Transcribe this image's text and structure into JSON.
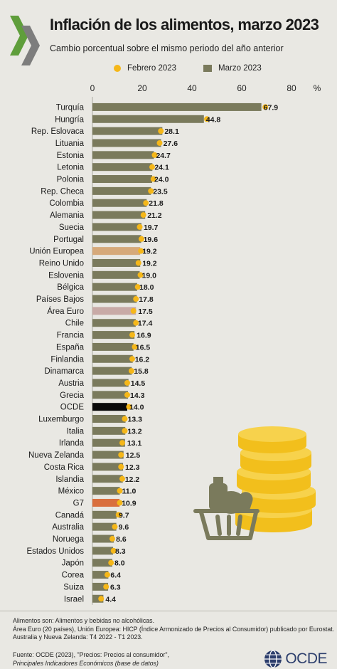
{
  "title": "Inflación de los alimentos, marzo 2023",
  "subtitle": "Cambio porcentual sobre el mismo periodo del año anterior",
  "colors": {
    "bar": "#7a7a5c",
    "dot": "#f5b719",
    "eu": "#d6a97a",
    "euro_area": "#c8aaa6",
    "oecd": "#0a0a0a",
    "g7": "#d96f3e",
    "background": "#e9e8e3"
  },
  "chart_data": {
    "type": "bar",
    "orientation": "horizontal",
    "unit_label": "%",
    "xlim": [
      0,
      85
    ],
    "x_ticks": [
      "0",
      "20",
      "40",
      "60",
      "80"
    ],
    "legend": {
      "placement": "top",
      "dot_label": "Febrero 2023",
      "bar_label": "Marzo 2023"
    },
    "categories": [
      "Turquía",
      "Hungría",
      "Rep. Eslovaca",
      "Lituania",
      "Estonia",
      "Letonia",
      "Polonia",
      "Rep. Checa",
      "Colombia",
      "Alemania",
      "Suecia",
      "Portugal",
      "Unión Europea",
      "Reino Unido",
      "Eslovenia",
      "Bélgica",
      "Países Bajos",
      "Área Euro",
      "Chile",
      "Francia",
      "España",
      "Finlandia",
      "Dinamarca",
      "Austria",
      "Grecia",
      "OCDE",
      "Luxemburgo",
      "Italia",
      "Irlanda",
      "Nueva Zelanda",
      "Costa Rica",
      "Islandia",
      "México",
      "G7",
      "Canadá",
      "Australia",
      "Noruega",
      "Estados Unidos",
      "Japón",
      "Corea",
      "Suiza",
      "Israel"
    ],
    "series": [
      {
        "name": "Marzo 2023",
        "values": [
          67.9,
          44.8,
          28.1,
          27.6,
          24.7,
          24.1,
          24.0,
          23.5,
          21.8,
          21.2,
          19.7,
          19.6,
          19.2,
          19.2,
          19.0,
          18.0,
          17.8,
          17.5,
          17.4,
          16.9,
          16.5,
          16.2,
          15.8,
          14.5,
          14.3,
          14.0,
          13.3,
          13.2,
          13.1,
          12.5,
          12.3,
          12.2,
          11.0,
          10.9,
          9.7,
          9.6,
          8.6,
          8.3,
          8.0,
          6.4,
          6.3,
          4.4
        ],
        "labels": [
          "67.9",
          "44.8",
          "28.1",
          "27.6",
          "24.7",
          "24.1",
          "24.0",
          "23.5",
          "21.8",
          "21.2",
          "19.7",
          "19.6",
          "19.2",
          "19.2",
          "19.0",
          "18.0",
          "17.8",
          "17.5",
          "17.4",
          "16.9",
          "16.5",
          "16.2",
          "15.8",
          "14.5",
          "14.3",
          "14.0",
          "13.3",
          "13.2",
          "13.1",
          "12.5",
          "12.3",
          "12.2",
          "11.0",
          "10.9",
          "9.7",
          "9.6",
          "8.6",
          "8.3",
          "8.0",
          "6.4",
          "6.3",
          "4.4"
        ]
      },
      {
        "name": "Febrero 2023",
        "values": [
          69.5,
          46.0,
          27.5,
          27.0,
          25.0,
          24.0,
          24.5,
          23.5,
          21.5,
          20.5,
          19.0,
          19.7,
          19.5,
          18.5,
          19.3,
          18.2,
          17.5,
          16.5,
          17.5,
          16.0,
          17.0,
          16.0,
          15.7,
          14.0,
          14.0,
          14.7,
          13.0,
          13.0,
          12.0,
          11.5,
          11.5,
          12.0,
          11.0,
          11.0,
          10.5,
          9.0,
          8.0,
          8.5,
          7.5,
          6.0,
          5.5,
          3.5
        ]
      }
    ],
    "highlights": {
      "Unión Europea": "eu",
      "Área Euro": "euro_area",
      "OCDE": "oecd",
      "G7": "g7"
    }
  },
  "footer": {
    "notes": [
      "Alimentos son: Alimentos y bebidas no alcohólicas.",
      "Área Euro (20 países), Unión Europea: HICP (Índice Armonizado de Precios al Consumidor) publicado por Eurostat.",
      "Australia y Nueva Zelanda:  T4 2022 - T1 2023."
    ],
    "source_line1": "Fuente: OCDE (2023), \"Precios: Precios al consumidor\",",
    "source_line2": "Principales Indicadores Económicos (base de datos)",
    "brand": "OCDE"
  }
}
